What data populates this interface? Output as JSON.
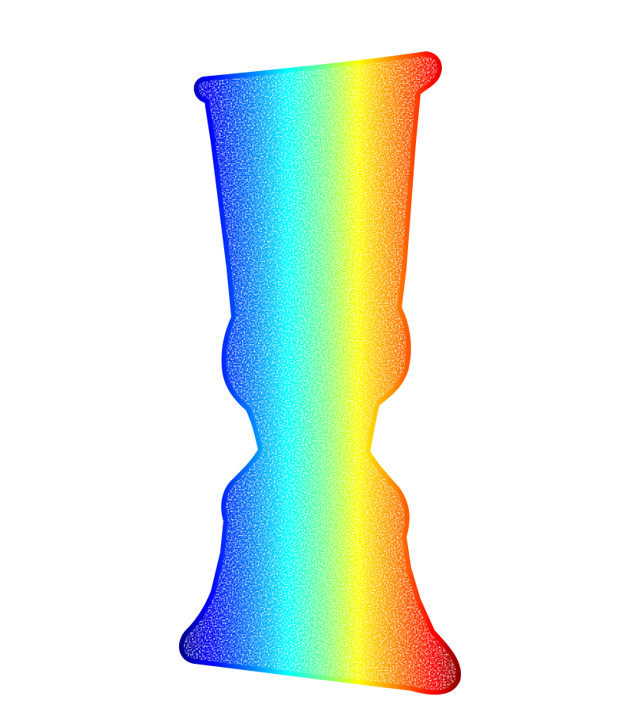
{
  "scene": {
    "subject": "vase-point-cloud",
    "background": "#ffffff",
    "colormap": [
      "#00008f",
      "#0000ff",
      "#0080ff",
      "#00ffff",
      "#80ff80",
      "#ffff00",
      "#ff8000",
      "#ff0000",
      "#800000"
    ]
  }
}
